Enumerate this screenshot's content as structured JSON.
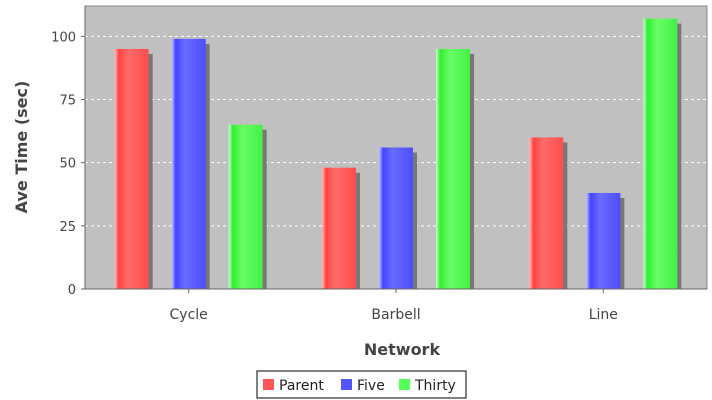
{
  "chart_data": {
    "type": "bar",
    "title": "",
    "xlabel": "Network",
    "ylabel": "Ave Time (sec)",
    "categories": [
      "Cycle",
      "Barbell",
      "Line"
    ],
    "series": [
      {
        "name": "Parent",
        "values": [
          95,
          48,
          60
        ]
      },
      {
        "name": "Five",
        "values": [
          99,
          56,
          38
        ]
      },
      {
        "name": "Thirty",
        "values": [
          65,
          95,
          107
        ]
      }
    ],
    "ylim": [
      0,
      112
    ],
    "yticks": [
      "0",
      "25",
      "50",
      "75",
      "100"
    ],
    "grid": true,
    "legend_position": "bottom-center",
    "colors": {
      "Parent": "#ff5555",
      "Five": "#5555ff",
      "Thirty": "#55ff55",
      "plot_background": "#c0c0c0"
    }
  }
}
